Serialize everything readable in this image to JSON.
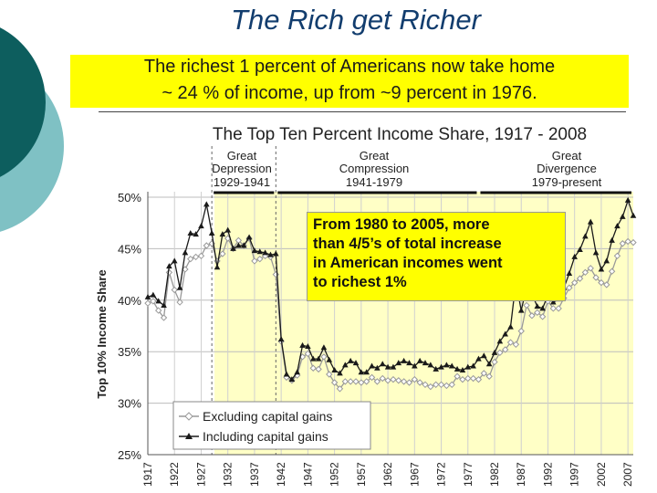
{
  "slide": {
    "title": "The Rich get Richer",
    "subtitle_lines": [
      "The richest 1 percent of Americans now take home",
      "~ 24 % of income, up from ~9 percent in 1976."
    ],
    "callout_lines": [
      "From 1980 to 2005, more",
      "than 4/5’s of total increase",
      "in American incomes went",
      "to richest 1%"
    ],
    "colors": {
      "title": "#123d6e",
      "highlight": "#ffff00",
      "theme_dark": "#0d5e5e",
      "theme_light": "#7fc1c4",
      "shade": "#ffffc6"
    }
  },
  "chart_data": {
    "type": "line",
    "title": "The Top Ten Percent Income Share, 1917 - 2008",
    "xlabel": "",
    "ylabel": "Top 10% Income Share",
    "ylim": [
      25,
      50
    ],
    "xlim": [
      1917,
      2008
    ],
    "y_ticks": [
      "25%",
      "30%",
      "35%",
      "40%",
      "45%",
      "50%"
    ],
    "x_ticks": [
      "1917",
      "1922",
      "1927",
      "1932",
      "1937",
      "1942",
      "1947",
      "1952",
      "1957",
      "1962",
      "1967",
      "1972",
      "1977",
      "1982",
      "1987",
      "1992",
      "1997",
      "2002",
      "2007"
    ],
    "periods": [
      {
        "name_lines": [
          "Great",
          "Depression"
        ],
        "range_label": "1929-1941",
        "start": 1929,
        "end": 1941
      },
      {
        "name_lines": [
          "Great",
          "Compression"
        ],
        "range_label": "1941-1979",
        "start": 1941,
        "end": 1979
      },
      {
        "name_lines": [
          "Great",
          "Divergence"
        ],
        "range_label": "1979-present",
        "start": 1979,
        "end": 2008
      }
    ],
    "legend_position": "bottom-left",
    "series": [
      {
        "name": "Excluding capital gains",
        "marker": "open-diamond",
        "color": "#999999",
        "x": [
          1917,
          1918,
          1919,
          1920,
          1921,
          1922,
          1923,
          1924,
          1925,
          1926,
          1927,
          1928,
          1929,
          1930,
          1931,
          1932,
          1933,
          1934,
          1935,
          1936,
          1937,
          1938,
          1939,
          1940,
          1941,
          1942,
          1943,
          1944,
          1945,
          1946,
          1947,
          1948,
          1949,
          1950,
          1951,
          1952,
          1953,
          1954,
          1955,
          1956,
          1957,
          1958,
          1959,
          1960,
          1961,
          1962,
          1963,
          1964,
          1965,
          1966,
          1967,
          1968,
          1969,
          1970,
          1971,
          1972,
          1973,
          1974,
          1975,
          1976,
          1977,
          1978,
          1979,
          1980,
          1981,
          1982,
          1983,
          1984,
          1985,
          1986,
          1987,
          1988,
          1989,
          1990,
          1991,
          1992,
          1993,
          1994,
          1995,
          1996,
          1997,
          1998,
          1999,
          2000,
          2001,
          2002,
          2003,
          2004,
          2005,
          2006,
          2007,
          2008
        ],
        "y": [
          39.7,
          39.9,
          39.0,
          38.3,
          42.7,
          41.0,
          39.8,
          43.0,
          44.0,
          44.2,
          44.3,
          45.3,
          45.5,
          43.8,
          44.5,
          46.0,
          45.0,
          45.8,
          45.3,
          46.0,
          43.8,
          44.0,
          44.3,
          44.2,
          42.5,
          36.0,
          32.5,
          32.2,
          32.7,
          34.5,
          34.8,
          33.4,
          33.3,
          34.5,
          32.8,
          32.0,
          31.4,
          32.1,
          32.1,
          32.1,
          32.0,
          32.1,
          32.5,
          32.1,
          32.4,
          32.2,
          32.3,
          32.2,
          32.1,
          32.0,
          32.3,
          32.0,
          31.8,
          31.6,
          31.8,
          31.8,
          31.7,
          31.8,
          32.6,
          32.3,
          32.4,
          32.4,
          32.3,
          32.9,
          32.6,
          34.0,
          34.9,
          35.2,
          35.9,
          35.7,
          37.0,
          39.5,
          38.5,
          38.8,
          38.4,
          39.9,
          39.2,
          39.2,
          40.2,
          41.2,
          41.7,
          42.1,
          42.7,
          43.1,
          42.2,
          41.7,
          41.5,
          42.8,
          44.3,
          45.5,
          45.7,
          45.6
        ]
      },
      {
        "name": "Including capital gains",
        "marker": "filled-triangle",
        "color": "#1a1a1a",
        "x": [
          1917,
          1918,
          1919,
          1920,
          1921,
          1922,
          1923,
          1924,
          1925,
          1926,
          1927,
          1928,
          1929,
          1930,
          1931,
          1932,
          1933,
          1934,
          1935,
          1936,
          1937,
          1938,
          1939,
          1940,
          1941,
          1942,
          1943,
          1944,
          1945,
          1946,
          1947,
          1948,
          1949,
          1950,
          1951,
          1952,
          1953,
          1954,
          1955,
          1956,
          1957,
          1958,
          1959,
          1960,
          1961,
          1962,
          1963,
          1964,
          1965,
          1966,
          1967,
          1968,
          1969,
          1970,
          1971,
          1972,
          1973,
          1974,
          1975,
          1976,
          1977,
          1978,
          1979,
          1980,
          1981,
          1982,
          1983,
          1984,
          1985,
          1986,
          1987,
          1988,
          1989,
          1990,
          1991,
          1992,
          1993,
          1994,
          1995,
          1996,
          1997,
          1998,
          1999,
          2000,
          2001,
          2002,
          2003,
          2004,
          2005,
          2006,
          2007,
          2008
        ],
        "y": [
          40.3,
          40.5,
          39.9,
          39.5,
          43.3,
          43.8,
          41.2,
          44.6,
          46.5,
          46.4,
          47.2,
          49.3,
          46.5,
          43.2,
          46.4,
          46.8,
          45.0,
          45.3,
          45.3,
          46.1,
          44.8,
          44.7,
          44.6,
          44.4,
          44.5,
          36.2,
          32.8,
          32.3,
          33.0,
          35.6,
          35.5,
          34.3,
          34.3,
          35.4,
          34.2,
          33.2,
          32.9,
          33.7,
          34.1,
          33.9,
          33.0,
          33.0,
          33.6,
          33.4,
          33.8,
          33.5,
          33.5,
          33.9,
          34.1,
          33.9,
          33.6,
          34.1,
          33.9,
          33.7,
          33.3,
          33.5,
          33.7,
          33.6,
          33.3,
          33.2,
          33.5,
          33.6,
          34.3,
          34.6,
          33.8,
          34.9,
          36.0,
          36.7,
          37.4,
          41.8,
          39.0,
          41.3,
          40.6,
          39.4,
          39.2,
          40.5,
          39.8,
          40.1,
          41.2,
          42.6,
          44.2,
          44.9,
          46.2,
          47.6,
          44.6,
          43.0,
          43.8,
          45.8,
          47.2,
          48.1,
          49.7,
          48.2
        ]
      }
    ]
  }
}
